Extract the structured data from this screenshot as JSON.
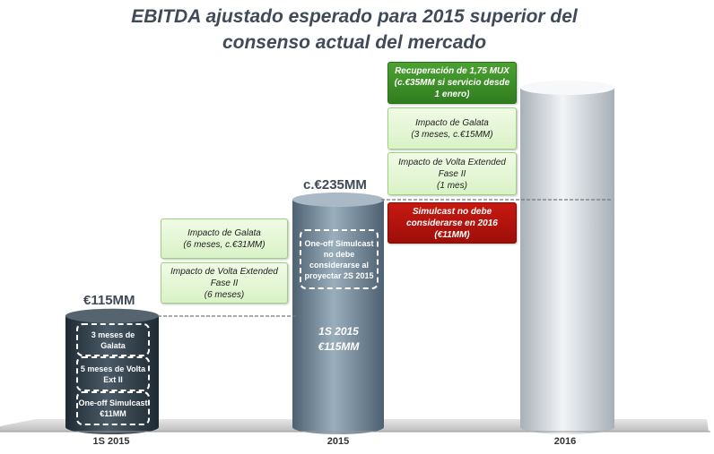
{
  "header": {
    "title_line1": "EBITDA ajustado esperado para 2015 superior del",
    "title_line2": "consenso actual del mercado"
  },
  "chart_data": {
    "type": "bar",
    "categories": [
      "1S 2015",
      "2015",
      "2016"
    ],
    "values": [
      115,
      235,
      null
    ],
    "bar_labels": [
      "€115MM",
      "c.€235MM",
      ""
    ],
    "ylim": [
      0,
      300
    ],
    "colors": {
      "bar_1s2015": "#2f3d48",
      "bar_2015": "#6f8596",
      "bar_2016": "#c9d0d6",
      "green": "#3b8f28",
      "red": "#b3140d",
      "light_green": "#e2f5d3"
    }
  },
  "bar_1s2015": {
    "segments": [
      "3 meses de Galata",
      "5 meses de Volta Ext II",
      "One-off Simulcast €11MM"
    ]
  },
  "bar_2015": {
    "note": "One-off Simulcast no debe considerarse al proyectar 2S 2015",
    "base_line1": "1S 2015",
    "base_line2": "€115MM",
    "boxes": [
      {
        "line1": "Impacto de Galata",
        "line2": "(6 meses, c.€31MM)"
      },
      {
        "line1": "Impacto de Volta Extended Fase II",
        "line2": "(6 meses)"
      }
    ]
  },
  "bar_2016": {
    "boxes": [
      {
        "line1": "Recuperación de 1,75 MUX",
        "line2": "(c.€35MM si servicio desde",
        "line3": "1 enero)"
      },
      {
        "line1": "Impacto de Galata",
        "line2": "(3 meses, c.€15MM)"
      },
      {
        "line1": "Impacto de Volta Extended Fase II",
        "line2": "(1 mes)"
      },
      {
        "line1": "Simulcast no debe considerarse en 2016",
        "line2": "(€11MM)"
      }
    ]
  }
}
